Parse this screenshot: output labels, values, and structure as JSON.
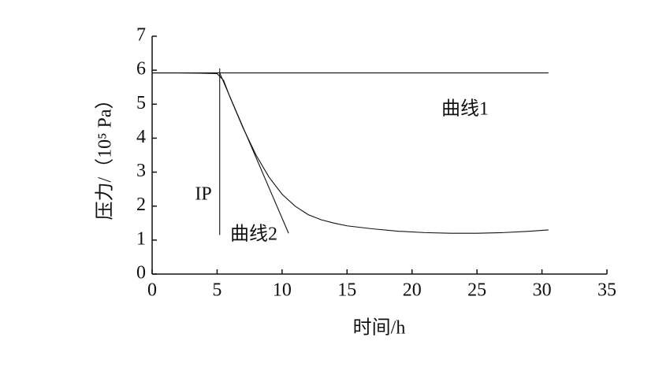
{
  "chart_data": {
    "type": "line",
    "xlabel": "时间/h",
    "ylabel": "压力/（10⁵ Pa）",
    "xlim": [
      0,
      35
    ],
    "xticks": [
      0,
      5,
      10,
      15,
      20,
      25,
      30,
      35
    ],
    "ylim": [
      0,
      7
    ],
    "yticks": [
      0,
      1,
      2,
      3,
      4,
      5,
      6,
      7
    ],
    "series": [
      {
        "color": "#111111",
        "x": [
          0,
          30.5
        ],
        "values": [
          5.92,
          5.92
        ]
      },
      {
        "color": "#111111",
        "x": [
          0,
          2,
          4,
          5,
          5.5,
          6,
          7,
          8,
          9,
          10,
          11,
          12,
          13,
          14,
          15,
          17,
          19,
          21,
          23,
          25,
          27,
          29,
          30.5
        ],
        "values": [
          5.92,
          5.92,
          5.91,
          5.9,
          5.7,
          5.2,
          4.3,
          3.5,
          2.85,
          2.35,
          2.0,
          1.75,
          1.6,
          1.5,
          1.42,
          1.33,
          1.26,
          1.22,
          1.2,
          1.2,
          1.22,
          1.26,
          1.3
        ]
      },
      {
        "color": "#111111",
        "x": [
          5.2,
          10.5
        ],
        "values": [
          5.92,
          1.2
        ]
      },
      {
        "color": "#111111",
        "x": [
          5.2,
          5.2
        ],
        "values": [
          6.05,
          1.15
        ]
      }
    ],
    "annotations": [
      "曲线1",
      "曲线2",
      "IP"
    ]
  }
}
